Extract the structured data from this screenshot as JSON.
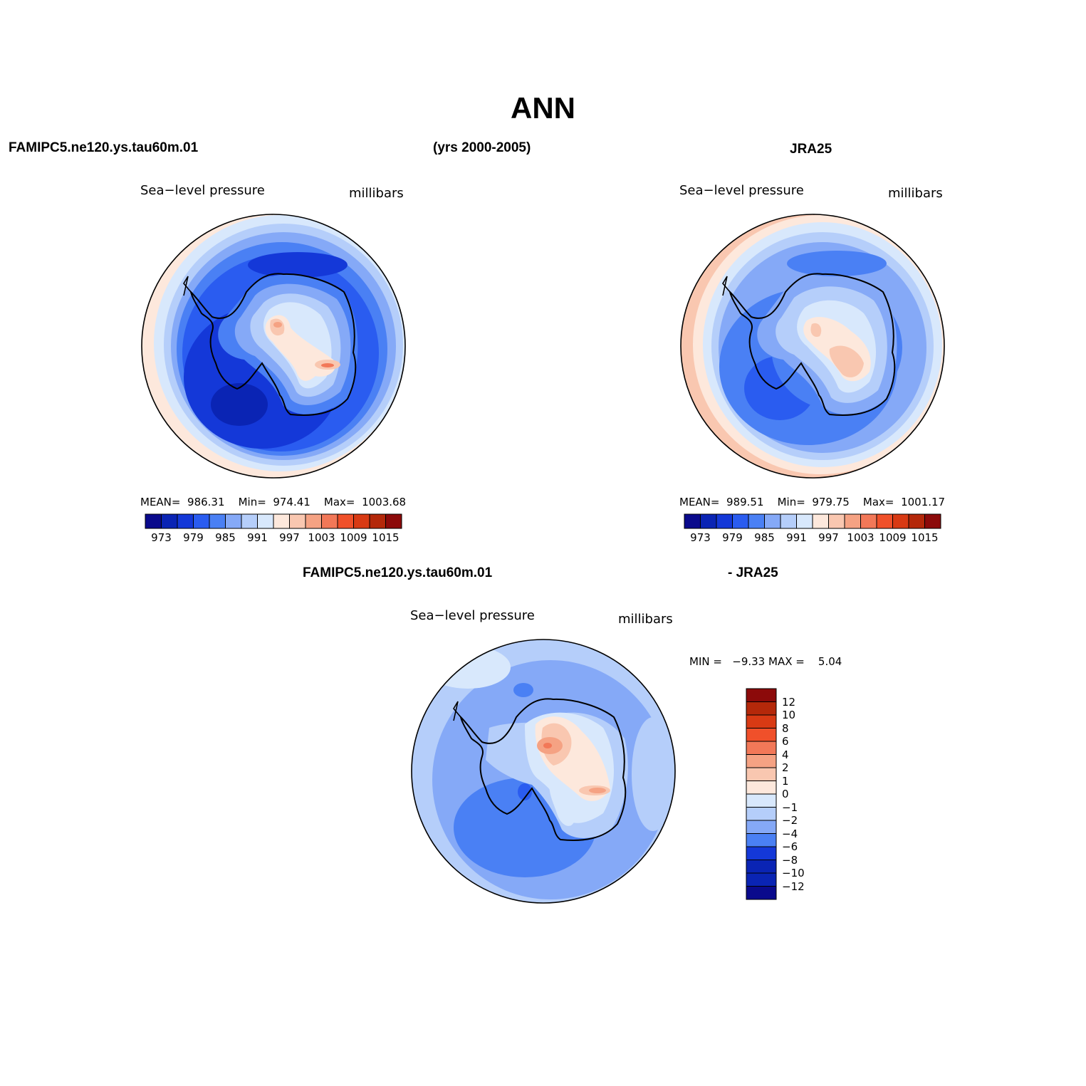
{
  "header": {
    "title": "ANN",
    "left": "FAMIPC5.ne120.ys.tau60m.01",
    "center": "(yrs 2000-2005)",
    "right": "JRA25"
  },
  "panels": [
    {
      "id": "model",
      "variable": "Sea−level pressure",
      "units": "millibars",
      "stats": {
        "mean_label": "MEAN=",
        "mean": "986.31",
        "min_label": "Min=",
        "min": "974.41",
        "max_label": "Max=",
        "max": "1003.68"
      }
    },
    {
      "id": "obs",
      "variable": "Sea−level pressure",
      "units": "millibars",
      "stats": {
        "mean_label": "MEAN=",
        "mean": "989.51",
        "min_label": "Min=",
        "min": "979.75",
        "max_label": "Max=",
        "max": "1001.17"
      }
    },
    {
      "id": "diff",
      "variable": "Sea−level pressure",
      "units": "millibars",
      "stats": {
        "min_label": "MIN =",
        "min": "−9.33",
        "max_label": "MAX =",
        "max": "5.04"
      }
    }
  ],
  "diff_header": {
    "left": "FAMIPC5.ne120.ys.tau60m.01",
    "right": "- JRA25"
  },
  "colorbar_horizontal": {
    "colors": [
      "#0a0a8c",
      "#0a24b4",
      "#1438d8",
      "#2a5cf0",
      "#4a80f4",
      "#85a9f7",
      "#b5cefa",
      "#d8e8fc",
      "#fde8dc",
      "#f9c7b0",
      "#f5a283",
      "#f27858",
      "#f0502a",
      "#d83a14",
      "#b4280a",
      "#8c0a0a"
    ],
    "labels": [
      "973",
      "979",
      "985",
      "991",
      "997",
      "1003",
      "1009",
      "1015"
    ]
  },
  "colorbar_vertical": {
    "colors": [
      "#8c0a0a",
      "#b4280a",
      "#d83a14",
      "#f0502a",
      "#f27858",
      "#f5a283",
      "#f9c7b0",
      "#fde8dc",
      "#d8e8fc",
      "#b5cefa",
      "#85a9f7",
      "#4a80f4",
      "#1438d8",
      "#0a24b4",
      "#0a24b4",
      "#0a0a8c"
    ],
    "labels": [
      "12",
      "10",
      "8",
      "6",
      "4",
      "2",
      "1",
      "0",
      "−1",
      "−2",
      "−4",
      "−6",
      "−8",
      "−10",
      "−12"
    ]
  }
}
